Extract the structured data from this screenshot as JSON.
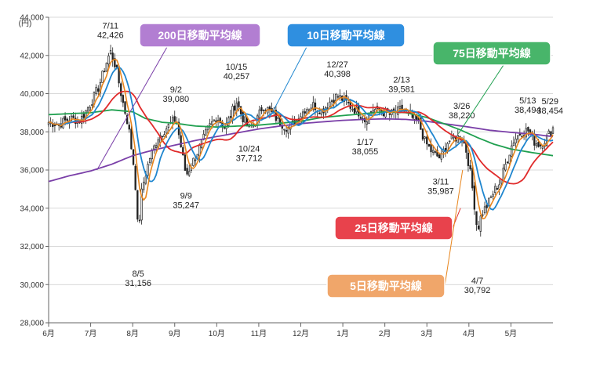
{
  "chart_data": {
    "type": "candlestick",
    "y_unit": "(円)",
    "ylim": [
      28000,
      44000
    ],
    "y_ticks": [
      "28,000",
      "30,000",
      "32,000",
      "34,000",
      "36,000",
      "38,000",
      "40,000",
      "42,000",
      "44,000"
    ],
    "x_tick_labels": [
      "6月",
      "7月",
      "8月",
      "9月",
      "10月",
      "11月",
      "12月",
      "1月",
      "2月",
      "3月",
      "4月",
      "5月"
    ],
    "grid": "horizontal",
    "annotations": [
      {
        "date": "7/11",
        "value": "42,426",
        "x": 1.47,
        "y": 42426,
        "pos": "above"
      },
      {
        "date": "8/5",
        "value": "31,156",
        "x": 2.13,
        "y": 31156,
        "pos": "below"
      },
      {
        "date": "9/2",
        "value": "39,080",
        "x": 3.03,
        "y": 39080,
        "pos": "above"
      },
      {
        "date": "9/9",
        "value": "35,247",
        "x": 3.27,
        "y": 35247,
        "pos": "below"
      },
      {
        "date": "10/15",
        "value": "40,257",
        "x": 4.47,
        "y": 40257,
        "pos": "above"
      },
      {
        "date": "10/24",
        "value": "37,712",
        "x": 4.77,
        "y": 37712,
        "pos": "below"
      },
      {
        "date": "12/27",
        "value": "40,398",
        "x": 6.87,
        "y": 40398,
        "pos": "above"
      },
      {
        "date": "1/17",
        "value": "38,055",
        "x": 7.53,
        "y": 38055,
        "pos": "below"
      },
      {
        "date": "2/13",
        "value": "39,581",
        "x": 8.4,
        "y": 39581,
        "pos": "above"
      },
      {
        "date": "3/11",
        "value": "35,987",
        "x": 9.33,
        "y": 35987,
        "pos": "below"
      },
      {
        "date": "3/26",
        "value": "38,220",
        "x": 9.83,
        "y": 38220,
        "pos": "above"
      },
      {
        "date": "4/7",
        "value": "30,792",
        "x": 10.2,
        "y": 30792,
        "pos": "below"
      },
      {
        "date": "5/13",
        "value": "38,494",
        "x": 11.4,
        "y": 38494,
        "pos": "above"
      },
      {
        "date": "5/29",
        "value": "38,454",
        "x": 11.93,
        "y": 38454,
        "pos": "above"
      }
    ],
    "anchors": [
      [
        0.0,
        38500
      ],
      [
        0.25,
        38400
      ],
      [
        0.5,
        38700
      ],
      [
        0.75,
        38600
      ],
      [
        1.0,
        39500
      ],
      [
        1.2,
        40400
      ],
      [
        1.4,
        41800
      ],
      [
        1.47,
        42200
      ],
      [
        1.6,
        41400
      ],
      [
        1.75,
        39700
      ],
      [
        1.9,
        38300
      ],
      [
        2.05,
        35800
      ],
      [
        2.13,
        32600
      ],
      [
        2.22,
        35000
      ],
      [
        2.4,
        36600
      ],
      [
        2.6,
        37700
      ],
      [
        2.8,
        38200
      ],
      [
        3.03,
        38700
      ],
      [
        3.15,
        37200
      ],
      [
        3.27,
        35700
      ],
      [
        3.4,
        36300
      ],
      [
        3.6,
        37200
      ],
      [
        3.8,
        38200
      ],
      [
        4.0,
        38800
      ],
      [
        4.2,
        38200
      ],
      [
        4.47,
        39600
      ],
      [
        4.6,
        38800
      ],
      [
        4.77,
        38200
      ],
      [
        4.95,
        38600
      ],
      [
        5.1,
        39400
      ],
      [
        5.3,
        39000
      ],
      [
        5.5,
        38500
      ],
      [
        5.7,
        38200
      ],
      [
        5.9,
        38600
      ],
      [
        6.1,
        39200
      ],
      [
        6.3,
        39400
      ],
      [
        6.5,
        39100
      ],
      [
        6.7,
        39600
      ],
      [
        6.87,
        39900
      ],
      [
        7.0,
        39700
      ],
      [
        7.2,
        39300
      ],
      [
        7.4,
        39000
      ],
      [
        7.53,
        38600
      ],
      [
        7.7,
        39200
      ],
      [
        7.9,
        39100
      ],
      [
        8.1,
        38900
      ],
      [
        8.25,
        39000
      ],
      [
        8.4,
        39200
      ],
      [
        8.6,
        38800
      ],
      [
        8.8,
        38500
      ],
      [
        8.95,
        37500
      ],
      [
        9.1,
        37000
      ],
      [
        9.2,
        36800
      ],
      [
        9.33,
        36600
      ],
      [
        9.5,
        37500
      ],
      [
        9.7,
        37700
      ],
      [
        9.83,
        37800
      ],
      [
        9.95,
        36900
      ],
      [
        10.05,
        35600
      ],
      [
        10.12,
        34400
      ],
      [
        10.2,
        32800
      ],
      [
        10.3,
        33700
      ],
      [
        10.45,
        34200
      ],
      [
        10.6,
        34900
      ],
      [
        10.75,
        35400
      ],
      [
        10.9,
        36500
      ],
      [
        11.05,
        37500
      ],
      [
        11.2,
        37900
      ],
      [
        11.4,
        38100
      ],
      [
        11.55,
        37500
      ],
      [
        11.7,
        37300
      ],
      [
        11.85,
        37700
      ],
      [
        12.0,
        38200
      ]
    ],
    "series": [
      {
        "name": "5日移動平均線",
        "color": "#e8861e",
        "period": 5
      },
      {
        "name": "10日移動平均線",
        "color": "#1f86cf",
        "period": 10
      },
      {
        "name": "25日移動平均線",
        "color": "#e02a2a",
        "period": 25
      },
      {
        "name": "75日移動平均線",
        "color": "#20a050",
        "period": 75
      },
      {
        "name": "200日移動平均線",
        "color": "#7a3fa8",
        "period": 200
      }
    ],
    "ma200": [
      [
        0.0,
        35400
      ],
      [
        0.5,
        35700
      ],
      [
        1.0,
        35950
      ],
      [
        1.5,
        36300
      ],
      [
        2.0,
        36750
      ],
      [
        2.5,
        37050
      ],
      [
        3.0,
        37300
      ],
      [
        3.5,
        37550
      ],
      [
        4.0,
        37750
      ],
      [
        4.5,
        37950
      ],
      [
        5.0,
        38150
      ],
      [
        5.5,
        38300
      ],
      [
        6.0,
        38430
      ],
      [
        6.5,
        38520
      ],
      [
        7.0,
        38600
      ],
      [
        7.5,
        38650
      ],
      [
        8.0,
        38680
      ],
      [
        8.5,
        38650
      ],
      [
        9.0,
        38550
      ],
      [
        9.5,
        38400
      ],
      [
        10.0,
        38250
      ],
      [
        10.5,
        38080
      ],
      [
        11.0,
        37970
      ],
      [
        11.5,
        37880
      ],
      [
        12.0,
        37750
      ]
    ],
    "ma75": [
      [
        0.0,
        38900
      ],
      [
        0.5,
        38950
      ],
      [
        1.0,
        39000
      ],
      [
        1.5,
        39150
      ],
      [
        2.0,
        39050
      ],
      [
        2.3,
        38700
      ],
      [
        2.7,
        38500
      ],
      [
        3.0,
        38450
      ],
      [
        3.5,
        38300
      ],
      [
        4.0,
        38250
      ],
      [
        4.5,
        38300
      ],
      [
        5.0,
        38350
      ],
      [
        5.5,
        38450
      ],
      [
        6.0,
        38550
      ],
      [
        6.5,
        38750
      ],
      [
        7.0,
        38850
      ],
      [
        7.5,
        38950
      ],
      [
        8.0,
        39050
      ],
      [
        8.5,
        39000
      ],
      [
        9.0,
        38750
      ],
      [
        9.5,
        38350
      ],
      [
        9.8,
        38100
      ],
      [
        10.2,
        37700
      ],
      [
        10.6,
        37350
      ],
      [
        11.0,
        37100
      ],
      [
        11.4,
        36950
      ],
      [
        11.7,
        36850
      ],
      [
        12.0,
        36750
      ]
    ],
    "labels": [
      {
        "text": "200日移動平均線",
        "color": "#b27ed2",
        "series": "200日移動平均線"
      },
      {
        "text": "10日移動平均線",
        "color": "#2f8fe0",
        "series": "10日移動平均線"
      },
      {
        "text": "75日移動平均線",
        "color": "#48b56a",
        "series": "75日移動平均線"
      },
      {
        "text": "25日移動平均線",
        "color": "#e8424c",
        "series": "25日移動平均線"
      },
      {
        "text": "5日移動平均線",
        "color": "#f0a66a",
        "series": "5日移動平均線"
      }
    ]
  }
}
